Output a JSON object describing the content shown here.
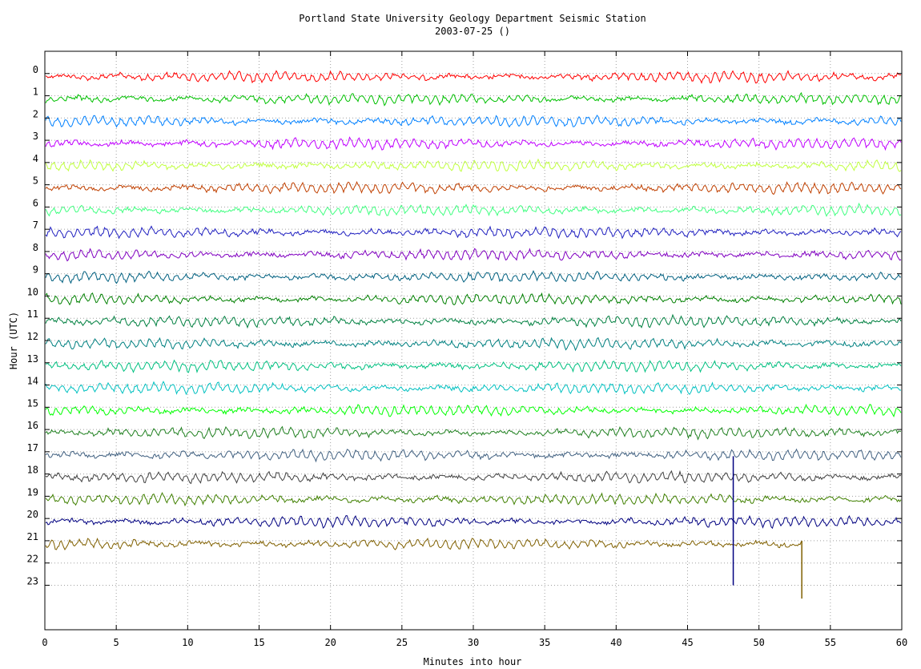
{
  "chart_data": {
    "type": "line",
    "title": "Portland State University Geology Department Seismic Station",
    "subtitle": "2003-07-25 ()",
    "xlabel": "Minutes into hour",
    "ylabel": "Hour (UTC)",
    "xlim": [
      0,
      60
    ],
    "ylim": [
      -1,
      25
    ],
    "x_ticks": [
      "0",
      "5",
      "10",
      "15",
      "20",
      "25",
      "30",
      "35",
      "40",
      "45",
      "50",
      "55",
      "60"
    ],
    "y_ticks": [
      "0",
      "1",
      "2",
      "3",
      "4",
      "5",
      "6",
      "7",
      "8",
      "9",
      "10",
      "11",
      "12",
      "13",
      "14",
      "15",
      "16",
      "17",
      "18",
      "19",
      "20",
      "21",
      "22",
      "23"
    ],
    "grid": true,
    "series": [
      {
        "hour": 0,
        "color": "#ff0000",
        "x_end": 60
      },
      {
        "hour": 1,
        "color": "#00c000",
        "x_end": 60
      },
      {
        "hour": 2,
        "color": "#0080ff",
        "x_end": 60
      },
      {
        "hour": 3,
        "color": "#c000ff",
        "x_end": 60
      },
      {
        "hour": 4,
        "color": "#c0ff40",
        "x_end": 60
      },
      {
        "hour": 5,
        "color": "#c04000",
        "x_end": 60
      },
      {
        "hour": 6,
        "color": "#40ff80",
        "x_end": 60
      },
      {
        "hour": 7,
        "color": "#2020c0",
        "x_end": 60
      },
      {
        "hour": 8,
        "color": "#8000c0",
        "x_end": 60
      },
      {
        "hour": 9,
        "color": "#006080",
        "x_end": 60
      },
      {
        "hour": 10,
        "color": "#008000",
        "x_end": 60
      },
      {
        "hour": 11,
        "color": "#008040",
        "x_end": 60
      },
      {
        "hour": 12,
        "color": "#008080",
        "x_end": 60
      },
      {
        "hour": 13,
        "color": "#00c080",
        "x_end": 60
      },
      {
        "hour": 14,
        "color": "#00c0c0",
        "x_end": 60
      },
      {
        "hour": 15,
        "color": "#00ff00",
        "x_end": 60
      },
      {
        "hour": 16,
        "color": "#208020",
        "x_end": 60
      },
      {
        "hour": 17,
        "color": "#406080",
        "x_end": 60
      },
      {
        "hour": 18,
        "color": "#404040",
        "x_end": 60
      },
      {
        "hour": 19,
        "color": "#408000",
        "x_end": 60
      },
      {
        "hour": 20,
        "color": "#000080",
        "x_end": 60
      },
      {
        "hour": 21,
        "color": "#806000",
        "x_end": 53
      }
    ],
    "events": [
      {
        "hour": 20,
        "minute": 48.2,
        "y_min": 17.2,
        "y_max": 23.0
      },
      {
        "hour": 21,
        "minute": 53.0,
        "y_min": 21.0,
        "y_max": 23.6
      }
    ]
  }
}
